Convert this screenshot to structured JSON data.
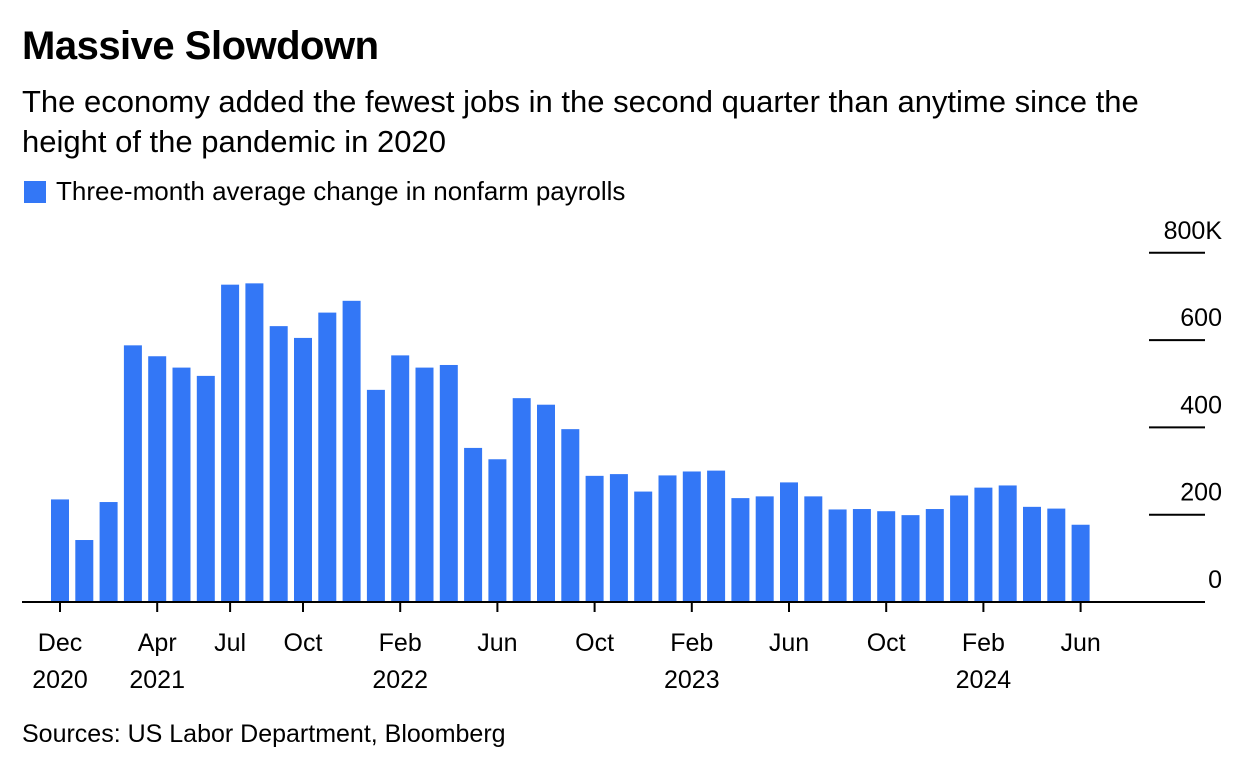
{
  "title": "Massive Slowdown",
  "subtitle": "The economy added the fewest jobs in the second quarter than anytime since the height of the pandemic in 2020",
  "source": "Sources: US Labor Department, Bloomberg",
  "colors": {
    "bar": "#3377f6",
    "axis": "#000000"
  },
  "chart_data": {
    "type": "bar",
    "title": "Massive Slowdown",
    "xlabel": "",
    "ylabel": "",
    "legend": [
      "Three-month average change in nonfarm payrolls"
    ],
    "legend_position": "top-left",
    "y_axis_position": "right",
    "grid": false,
    "ylim": [
      0,
      800
    ],
    "y_unit": "K",
    "y_ticks": [
      0,
      200,
      400,
      600,
      800
    ],
    "y_tick_labels": [
      "0",
      "200",
      "400",
      "600",
      "800K"
    ],
    "categories": [
      "2020-12",
      "2021-01",
      "2021-02",
      "2021-03",
      "2021-04",
      "2021-05",
      "2021-06",
      "2021-07",
      "2021-08",
      "2021-09",
      "2021-10",
      "2021-11",
      "2021-12",
      "2022-01",
      "2022-02",
      "2022-03",
      "2022-04",
      "2022-05",
      "2022-06",
      "2022-07",
      "2022-08",
      "2022-09",
      "2022-10",
      "2022-11",
      "2022-12",
      "2023-01",
      "2023-02",
      "2023-03",
      "2023-04",
      "2023-05",
      "2023-06",
      "2023-07",
      "2023-08",
      "2023-09",
      "2023-10",
      "2023-11",
      "2023-12",
      "2024-01",
      "2024-02",
      "2024-03",
      "2024-04",
      "2024-05",
      "2024-06"
    ],
    "series": [
      {
        "name": "Three-month average change in nonfarm payrolls",
        "values": [
          235,
          142,
          229,
          588,
          563,
          537,
          518,
          727,
          730,
          632,
          605,
          663,
          690,
          486,
          565,
          537,
          543,
          353,
          327,
          467,
          452,
          396,
          289,
          293,
          253,
          290,
          299,
          301,
          238,
          242,
          274,
          242,
          212,
          213,
          208,
          199,
          213,
          244,
          262,
          267,
          218,
          214,
          177
        ]
      }
    ],
    "x_tick_labels": [
      {
        "month": "Dec",
        "year": "2020",
        "category": "2020-12"
      },
      {
        "month": "Apr",
        "year": "2021",
        "category": "2021-04"
      },
      {
        "month": "Jul",
        "year": "",
        "category": "2021-07"
      },
      {
        "month": "Oct",
        "year": "",
        "category": "2021-10"
      },
      {
        "month": "Feb",
        "year": "2022",
        "category": "2022-02"
      },
      {
        "month": "Jun",
        "year": "",
        "category": "2022-06"
      },
      {
        "month": "Oct",
        "year": "",
        "category": "2022-10"
      },
      {
        "month": "Feb",
        "year": "2023",
        "category": "2023-02"
      },
      {
        "month": "Jun",
        "year": "",
        "category": "2023-06"
      },
      {
        "month": "Oct",
        "year": "",
        "category": "2023-10"
      },
      {
        "month": "Feb",
        "year": "2024",
        "category": "2024-02"
      },
      {
        "month": "Jun",
        "year": "",
        "category": "2024-06"
      }
    ]
  }
}
